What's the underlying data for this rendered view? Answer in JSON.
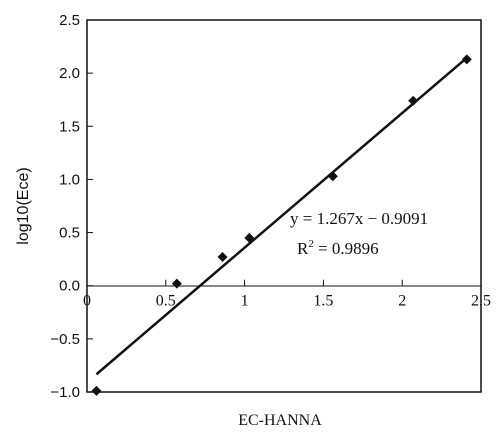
{
  "chart_data": {
    "type": "scatter",
    "title": "",
    "xlabel": "EC-HANNA",
    "ylabel": "log10(Ece)",
    "xlim": [
      0,
      2.5
    ],
    "ylim": [
      -1.0,
      2.5
    ],
    "x_ticks": [
      0,
      0.5,
      1,
      1.5,
      2,
      2.5
    ],
    "x_tick_labels": [
      "0",
      "0.5",
      "1",
      "1.5",
      "2",
      "2.5"
    ],
    "y_ticks": [
      2.5,
      2.0,
      1.5,
      1.0,
      0.5,
      0.0,
      -0.5,
      -1.0
    ],
    "y_tick_labels": [
      "2.5",
      "2.0",
      "1.5",
      "1.0",
      "0.5",
      "0.0",
      "−0.5",
      "−1.0"
    ],
    "grid": false,
    "points": {
      "x": [
        0.06,
        0.57,
        0.86,
        1.03,
        1.56,
        2.07,
        2.41
      ],
      "y": [
        -0.99,
        0.02,
        0.27,
        0.45,
        1.03,
        1.74,
        2.13
      ]
    },
    "trendline": {
      "slope": 1.267,
      "intercept": -0.9091,
      "x_range": [
        0.06,
        2.41
      ]
    },
    "annotation": {
      "equation": "y = 1.267x − 0.9091",
      "r2_prefix": "R",
      "r2_sup": "2",
      "r2_suffix": " = 0.9896"
    }
  }
}
